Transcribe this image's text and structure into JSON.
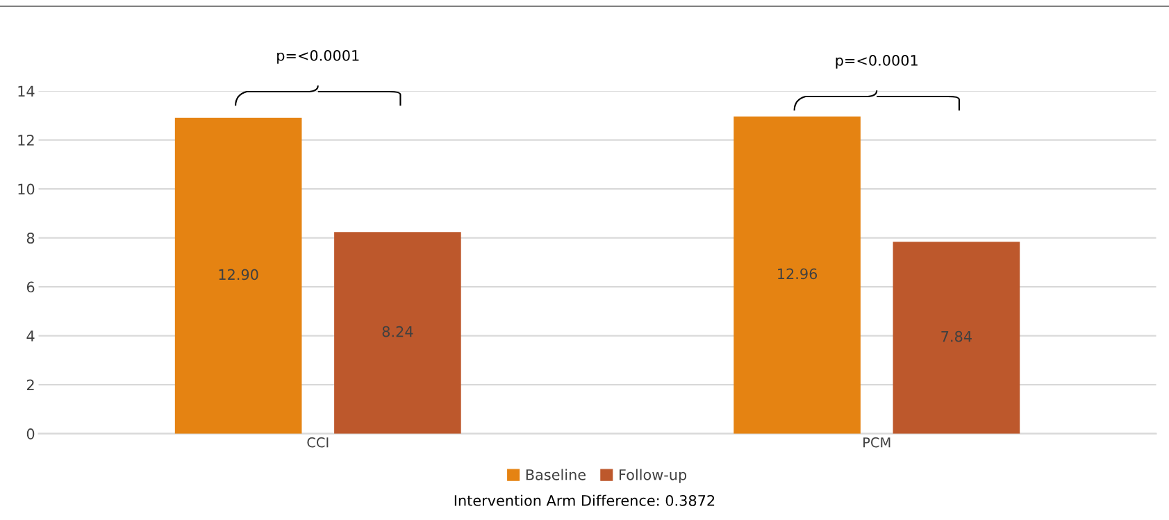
{
  "chart_data": {
    "type": "bar",
    "categories": [
      "CCI",
      "PCM"
    ],
    "series": [
      {
        "name": "Baseline",
        "color": "#e58312",
        "values": [
          12.9,
          12.96
        ],
        "value_labels": [
          "12.90",
          "12.96"
        ]
      },
      {
        "name": "Follow-up",
        "color": "#bd582c",
        "values": [
          8.24,
          7.84
        ],
        "value_labels": [
          "8.24",
          "7.84"
        ]
      }
    ],
    "ylim": [
      0,
      14
    ],
    "yticks": [
      0,
      2,
      4,
      6,
      8,
      10,
      12,
      14
    ],
    "grid": "y",
    "legend": "bottom",
    "annotations": [
      "p=<0.0001",
      "p=<0.0001",
      "Intervention Arm Difference: 0.3872"
    ]
  }
}
